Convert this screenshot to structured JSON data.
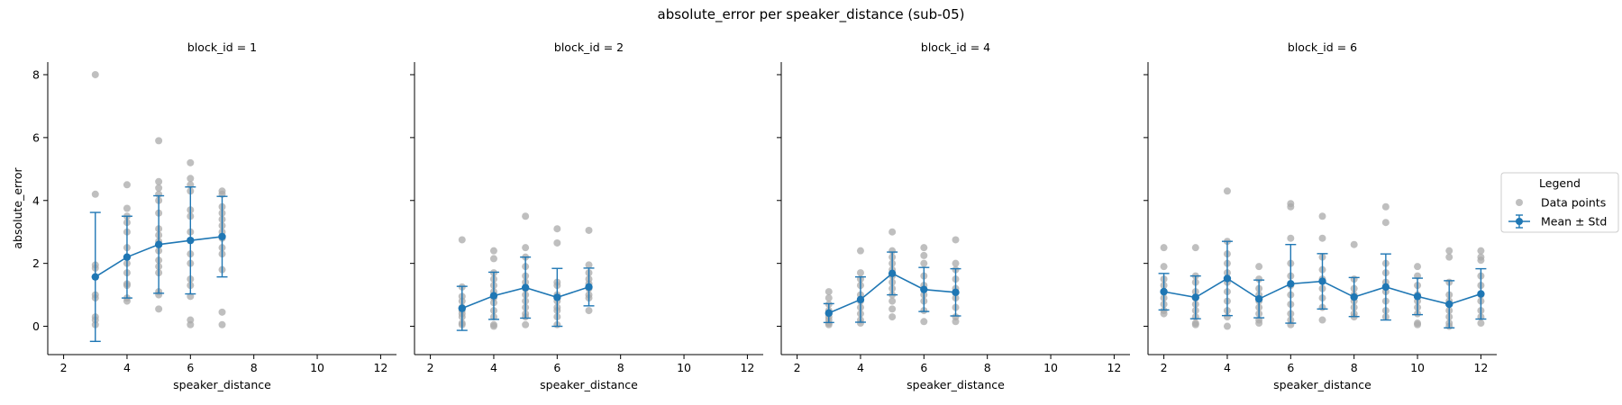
{
  "chart_data": {
    "type": "scatter",
    "title": "absolute_error per speaker_distance (sub-05)",
    "xlabel": "speaker_distance",
    "ylabel": "absolute_error",
    "xlim": [
      1.5,
      12.5
    ],
    "ylim": [
      -0.9,
      8.4
    ],
    "xticks": [
      2,
      4,
      6,
      8,
      10,
      12
    ],
    "yticks": [
      0,
      2,
      4,
      6,
      8
    ],
    "colors": {
      "points": "#a9a9a9",
      "mean": "#1f77b4"
    },
    "legend": {
      "title": "Legend",
      "placement": "right",
      "entries": [
        "Data points",
        "Mean ± Std"
      ]
    },
    "panels": [
      {
        "title": "block_id = 1",
        "mean": [
          {
            "x": 3,
            "mean": 1.57,
            "std": 2.05
          },
          {
            "x": 4,
            "mean": 2.2,
            "std": 1.3
          },
          {
            "x": 5,
            "mean": 2.6,
            "std": 1.55
          },
          {
            "x": 6,
            "mean": 2.73,
            "std": 1.7
          },
          {
            "x": 7,
            "mean": 2.85,
            "std": 1.28
          }
        ],
        "points": [
          {
            "x": 3,
            "y": [
              8.0,
              4.2,
              1.95,
              1.85,
              1.0,
              0.9,
              0.3,
              0.2,
              0.05
            ]
          },
          {
            "x": 4,
            "y": [
              4.5,
              3.75,
              3.5,
              3.3,
              3.0,
              2.5,
              2.0,
              1.7,
              1.35,
              1.3,
              0.9,
              0.8
            ]
          },
          {
            "x": 5,
            "y": [
              5.9,
              4.6,
              4.4,
              4.2,
              4.0,
              3.6,
              3.1,
              2.9,
              2.7,
              2.4,
              2.1,
              1.9,
              1.7,
              1.1,
              1.0,
              0.55
            ]
          },
          {
            "x": 6,
            "y": [
              5.2,
              4.7,
              4.5,
              4.3,
              3.7,
              3.5,
              3.0,
              2.3,
              2.0,
              1.5,
              1.3,
              0.95,
              0.2,
              0.05
            ]
          },
          {
            "x": 7,
            "y": [
              4.3,
              4.2,
              3.8,
              3.6,
              3.4,
              3.2,
              3.0,
              2.8,
              2.5,
              2.3,
              1.8,
              0.45,
              0.05
            ]
          }
        ]
      },
      {
        "title": "block_id = 2",
        "mean": [
          {
            "x": 3,
            "mean": 0.57,
            "std": 0.7
          },
          {
            "x": 4,
            "mean": 0.97,
            "std": 0.75
          },
          {
            "x": 5,
            "mean": 1.23,
            "std": 0.97
          },
          {
            "x": 6,
            "mean": 0.92,
            "std": 0.92
          },
          {
            "x": 7,
            "mean": 1.25,
            "std": 0.6
          }
        ],
        "points": [
          {
            "x": 3,
            "y": [
              2.75,
              1.25,
              0.95,
              0.8,
              0.6,
              0.5,
              0.4,
              0.3,
              0.1,
              0.05
            ]
          },
          {
            "x": 4,
            "y": [
              2.4,
              2.15,
              1.7,
              1.5,
              1.3,
              1.1,
              0.9,
              0.75,
              0.5,
              0.3,
              0.05,
              0.0
            ]
          },
          {
            "x": 5,
            "y": [
              3.5,
              2.5,
              2.2,
              1.9,
              1.6,
              1.4,
              1.2,
              1.0,
              0.8,
              0.6,
              0.4,
              0.3,
              0.05
            ]
          },
          {
            "x": 6,
            "y": [
              3.1,
              2.65,
              1.4,
              1.3,
              1.0,
              0.8,
              0.6,
              0.5,
              0.3,
              0.05
            ]
          },
          {
            "x": 7,
            "y": [
              3.05,
              1.95,
              1.7,
              1.5,
              1.35,
              1.2,
              1.0,
              0.9,
              0.5
            ]
          }
        ]
      },
      {
        "title": "block_id = 4",
        "mean": [
          {
            "x": 3,
            "mean": 0.42,
            "std": 0.3
          },
          {
            "x": 4,
            "mean": 0.85,
            "std": 0.72
          },
          {
            "x": 5,
            "mean": 1.68,
            "std": 0.68
          },
          {
            "x": 6,
            "mean": 1.17,
            "std": 0.7
          },
          {
            "x": 7,
            "mean": 1.08,
            "std": 0.75
          }
        ],
        "points": [
          {
            "x": 3,
            "y": [
              1.1,
              0.9,
              0.7,
              0.5,
              0.4,
              0.3,
              0.2,
              0.1,
              0.05
            ]
          },
          {
            "x": 4,
            "y": [
              2.4,
              1.7,
              1.5,
              1.3,
              1.0,
              0.8,
              0.6,
              0.4,
              0.2,
              0.1
            ]
          },
          {
            "x": 5,
            "y": [
              3.0,
              2.4,
              2.2,
              2.0,
              1.8,
              1.6,
              1.4,
              1.2,
              1.0,
              0.8,
              0.55,
              0.3
            ]
          },
          {
            "x": 6,
            "y": [
              2.5,
              2.25,
              2.0,
              1.6,
              1.3,
              1.0,
              0.8,
              0.5,
              0.15
            ]
          },
          {
            "x": 7,
            "y": [
              2.75,
              2.0,
              1.8,
              1.5,
              1.2,
              0.9,
              0.6,
              0.3,
              0.15
            ]
          }
        ]
      },
      {
        "title": "block_id = 6",
        "mean": [
          {
            "x": 2,
            "mean": 1.1,
            "std": 0.58
          },
          {
            "x": 3,
            "mean": 0.92,
            "std": 0.68
          },
          {
            "x": 4,
            "mean": 1.52,
            "std": 1.18
          },
          {
            "x": 5,
            "mean": 0.87,
            "std": 0.6
          },
          {
            "x": 6,
            "mean": 1.35,
            "std": 1.25
          },
          {
            "x": 7,
            "mean": 1.43,
            "std": 0.88
          },
          {
            "x": 8,
            "mean": 0.93,
            "std": 0.62
          },
          {
            "x": 9,
            "mean": 1.25,
            "std": 1.05
          },
          {
            "x": 10,
            "mean": 0.95,
            "std": 0.58
          },
          {
            "x": 11,
            "mean": 0.7,
            "std": 0.75
          },
          {
            "x": 12,
            "mean": 1.03,
            "std": 0.8
          }
        ],
        "points": [
          {
            "x": 2,
            "y": [
              2.5,
              1.9,
              1.5,
              1.3,
              1.1,
              0.9,
              0.7,
              0.5,
              0.4
            ]
          },
          {
            "x": 3,
            "y": [
              2.5,
              1.6,
              1.4,
              1.1,
              0.9,
              0.7,
              0.5,
              0.3,
              0.1,
              0.05
            ]
          },
          {
            "x": 4,
            "y": [
              4.3,
              2.7,
              2.3,
              2.0,
              1.7,
              1.4,
              1.1,
              0.8,
              0.5,
              0.3,
              0.0
            ]
          },
          {
            "x": 5,
            "y": [
              1.9,
              1.5,
              1.2,
              1.0,
              0.8,
              0.6,
              0.4,
              0.2,
              0.1
            ]
          },
          {
            "x": 6,
            "y": [
              3.9,
              3.8,
              2.8,
              2.0,
              1.6,
              1.3,
              1.0,
              0.7,
              0.4,
              0.2,
              0.05
            ]
          },
          {
            "x": 7,
            "y": [
              3.5,
              2.8,
              2.2,
              1.8,
              1.5,
              1.2,
              0.9,
              0.6,
              0.2
            ]
          },
          {
            "x": 8,
            "y": [
              2.6,
              1.5,
              1.2,
              1.0,
              0.8,
              0.6,
              0.4,
              0.3
            ]
          },
          {
            "x": 9,
            "y": [
              3.8,
              3.3,
              2.0,
              1.7,
              1.4,
              1.1,
              0.8,
              0.5,
              0.3
            ]
          },
          {
            "x": 10,
            "y": [
              1.9,
              1.6,
              1.3,
              1.0,
              0.8,
              0.6,
              0.4,
              0.1,
              0.05
            ]
          },
          {
            "x": 11,
            "y": [
              2.4,
              2.2,
              1.4,
              1.0,
              0.8,
              0.5,
              0.3,
              0.1,
              0.0
            ]
          },
          {
            "x": 12,
            "y": [
              2.4,
              2.2,
              2.1,
              1.6,
              1.3,
              1.0,
              0.8,
              0.5,
              0.3,
              0.1
            ]
          }
        ]
      }
    ]
  }
}
